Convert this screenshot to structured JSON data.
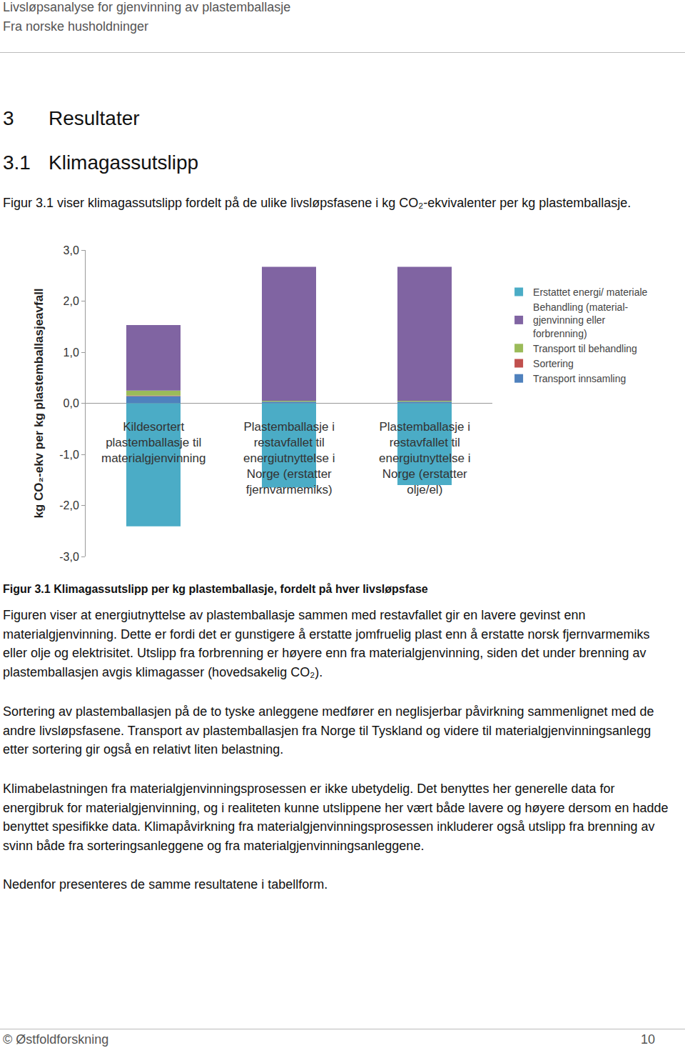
{
  "header": {
    "title": "Livsløpsanalyse for gjenvinning av plastemballasje",
    "subtitle": "Fra norske husholdninger"
  },
  "section": {
    "number": "3",
    "title": "Resultater"
  },
  "subsection": {
    "number": "3.1",
    "title": "Klimagassutslipp"
  },
  "intro": "Figur 3.1 viser klimagassutslipp fordelt på de ulike livsløpsfasene i kg CO₂-ekvivalenter per kg plastemballasje.",
  "chart_data": {
    "type": "bar",
    "stacked": true,
    "ylabel": "kg CO₂-ekv per kg plastemballasjeavfall",
    "categories": [
      "Kildesortert\nplastemballasje til\nmaterialgjenvinning",
      "Plastemballasje i\nrestavfallet til\nenergiutnyttelse i\nNorge (erstatter\nfjernvarmemiks)",
      "Plastemballasje i\nrestavfallet til\nenergiutnyttelse i\nNorge (erstatter\nolje/el)"
    ],
    "ylim": [
      -3,
      3
    ],
    "yticks": [
      {
        "value": -3,
        "label": "-3,0"
      },
      {
        "value": -2,
        "label": "-2,0"
      },
      {
        "value": -1,
        "label": "-1,0"
      },
      {
        "value": 0,
        "label": "0,0"
      },
      {
        "value": 1,
        "label": "1,0"
      },
      {
        "value": 2,
        "label": "2,0"
      },
      {
        "value": 3,
        "label": "3,0"
      }
    ],
    "grid": false,
    "legend": "right",
    "tick_labels": "y",
    "series": [
      {
        "name": "Transport innsamling",
        "color": "#4f81bd",
        "values": [
          0.14,
          0.03,
          0.03
        ]
      },
      {
        "name": "Sortering",
        "color": "#c0504d",
        "values": [
          0.01,
          0,
          0
        ]
      },
      {
        "name": "Transport til behandling",
        "color": "#9bbb59",
        "values": [
          0.1,
          0.02,
          0.02
        ]
      },
      {
        "name": "Behandling (material-\ngjenvinning eller\nforbrenning)",
        "color": "#8064a2",
        "values": [
          1.28,
          2.62,
          2.62
        ]
      },
      {
        "name": "Erstattet energi/ materiale",
        "color": "#4bacc6",
        "values": [
          -2.41,
          -1.65,
          -1.6
        ]
      }
    ]
  },
  "caption": "Figur 3.1 Klimagassutslipp per kg plastemballasje, fordelt på hver livsløpsfase",
  "paragraphs": [
    "Figuren viser at energiutnyttelse av plastemballasje sammen med restavfallet gir en lavere gevinst enn materialgjenvinning. Dette er fordi det er gunstigere å erstatte jomfruelig plast enn å erstatte norsk fjernvarmemiks eller olje og elektrisitet. Utslipp fra forbrenning er høyere enn fra materialgjenvinning, siden det under brenning av plastemballasjen avgis klimagasser (hovedsakelig CO₂).",
    "Sortering av plastemballasjen på de to tyske anleggene medfører en neglisjerbar påvirkning sammenlignet med de andre livsløpsfasene. Transport av plastemballasjen fra Norge til Tyskland og videre til materialgjenvinningsanlegg etter sortering gir også en relativt liten belastning.",
    "Klimabelastningen fra materialgjenvinningsprosessen er ikke ubetydelig. Det benyttes her generelle data for energibruk for materialgjenvinning, og i realiteten kunne utslippene her vært både lavere og høyere dersom en hadde benyttet spesifikke data. Klimapåvirkning fra materialgjenvinningsprosessen inkluderer også utslipp fra brenning av svinn både fra sorteringsanleggene og fra materialgjenvinningsanleggene.",
    "Nedenfor presenteres de samme resultatene i tabellform."
  ],
  "footer": {
    "left": "© Østfoldforskning",
    "page": "10"
  }
}
